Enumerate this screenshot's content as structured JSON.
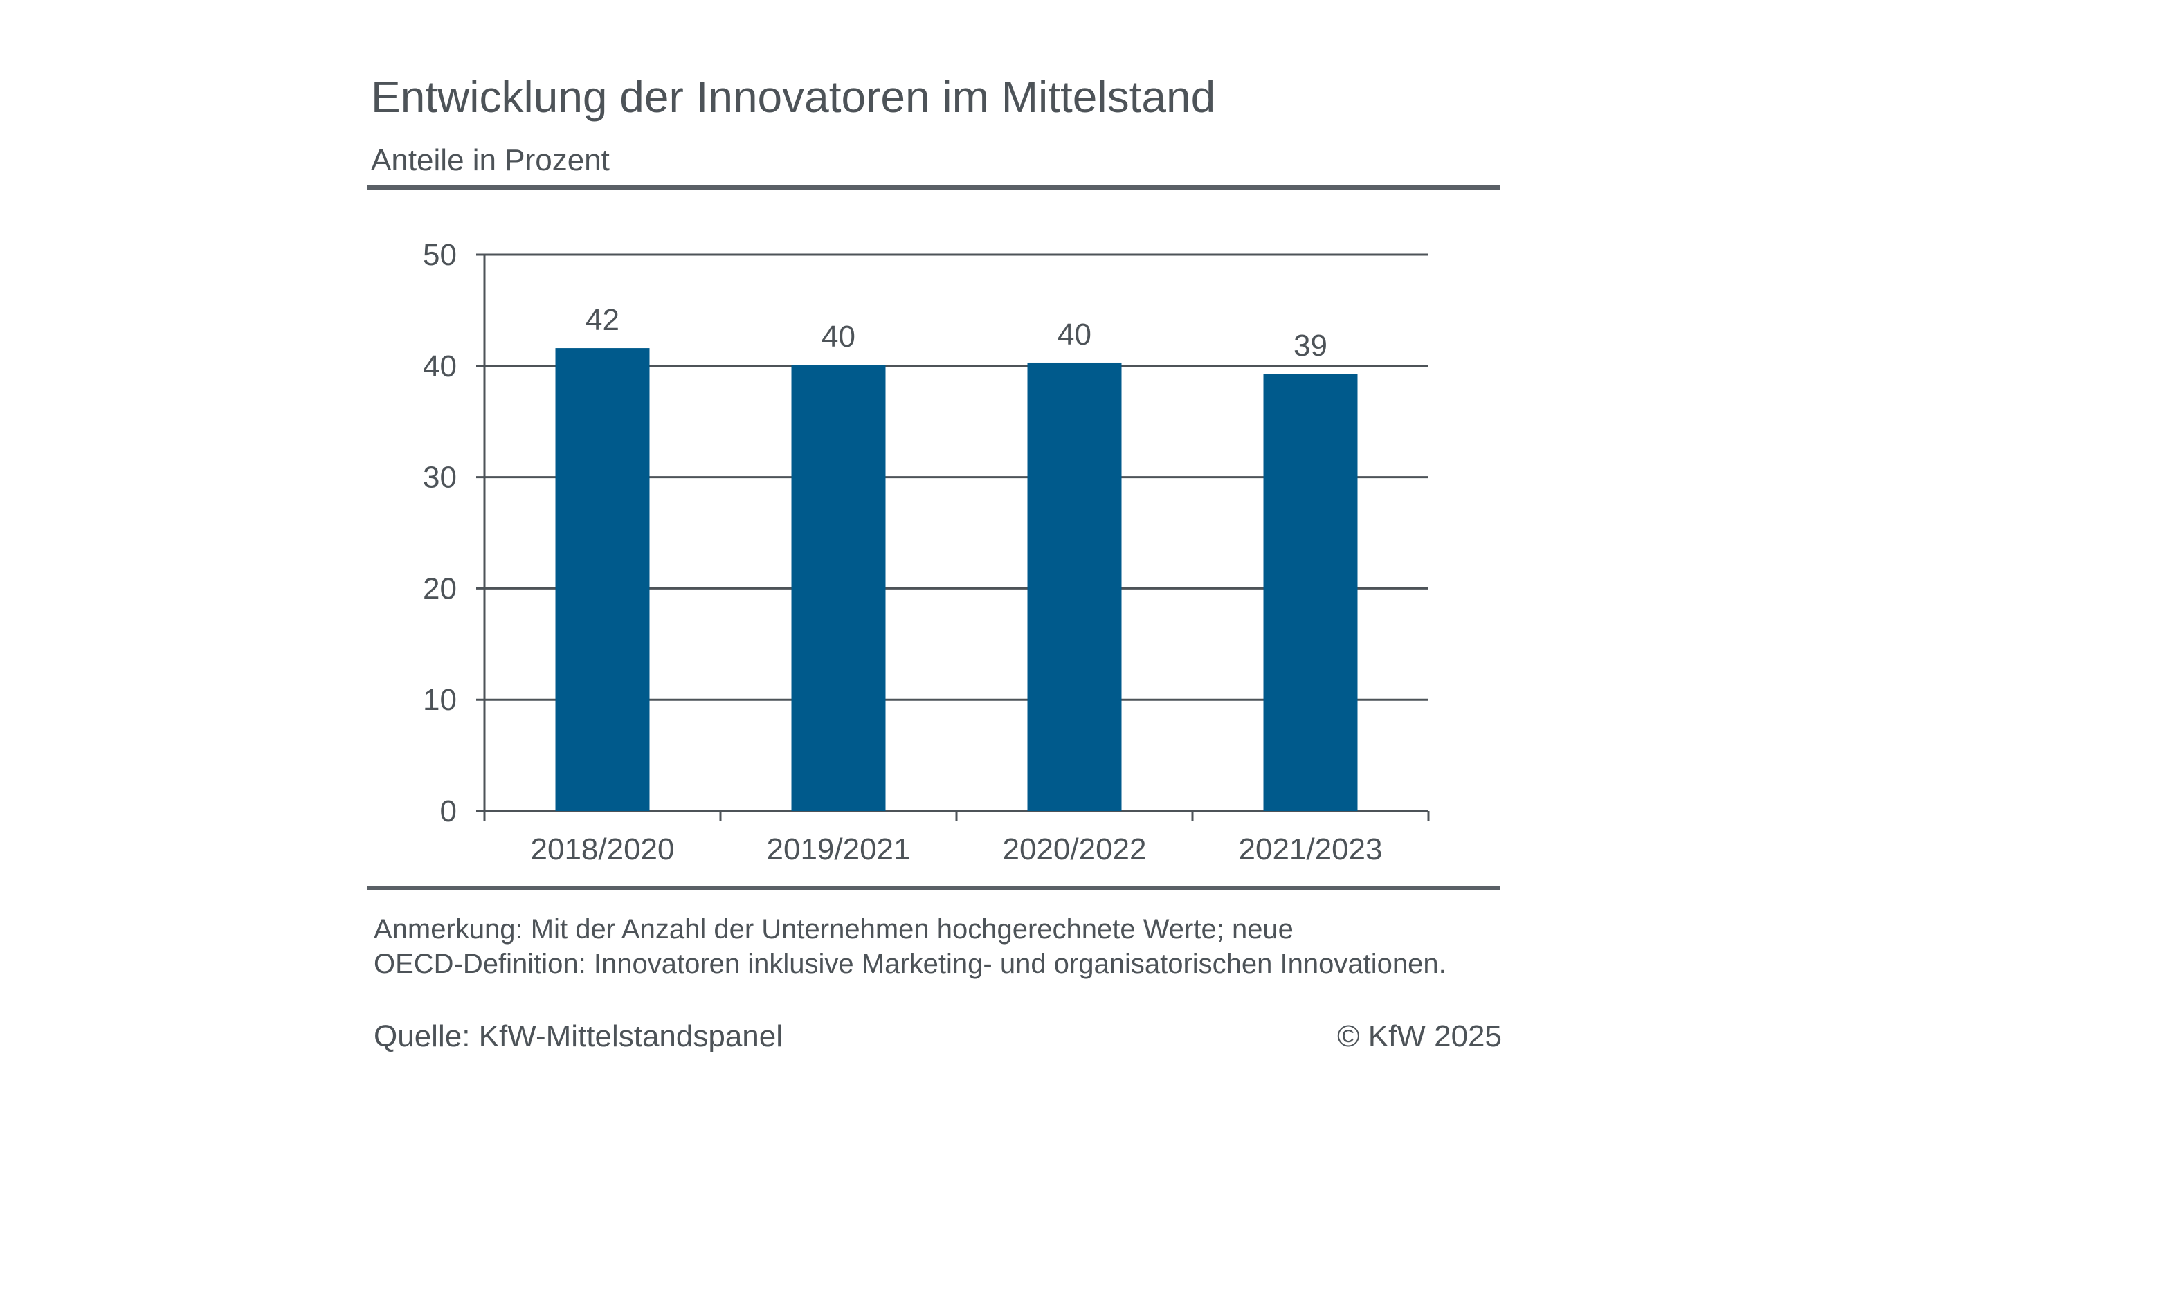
{
  "header": {
    "title": "Entwicklung der Innovatoren im Mittelstand",
    "subtitle": "Anteile in Prozent"
  },
  "chart_data": {
    "type": "bar",
    "categories": [
      "2018/2020",
      "2019/2021",
      "2020/2022",
      "2021/2023"
    ],
    "values": [
      41.6,
      40.1,
      40.3,
      39.3
    ],
    "data_labels": [
      "42",
      "40",
      "40",
      "39"
    ],
    "yticks": [
      "0",
      "10",
      "20",
      "30",
      "40",
      "50"
    ],
    "ylim": [
      0,
      50
    ],
    "grid": true,
    "legend": "none",
    "bar_color": "#005a8c"
  },
  "footer": {
    "note_line1": "Anmerkung: Mit der Anzahl der Unternehmen hochgerechnete Werte; neue",
    "note_line2": "OECD-Definition: Innovatoren inklusive Marketing- und organisatorischen Innovationen.",
    "source": "Quelle: KfW-Mittelstandspanel",
    "copyright": "© KfW 2025"
  }
}
